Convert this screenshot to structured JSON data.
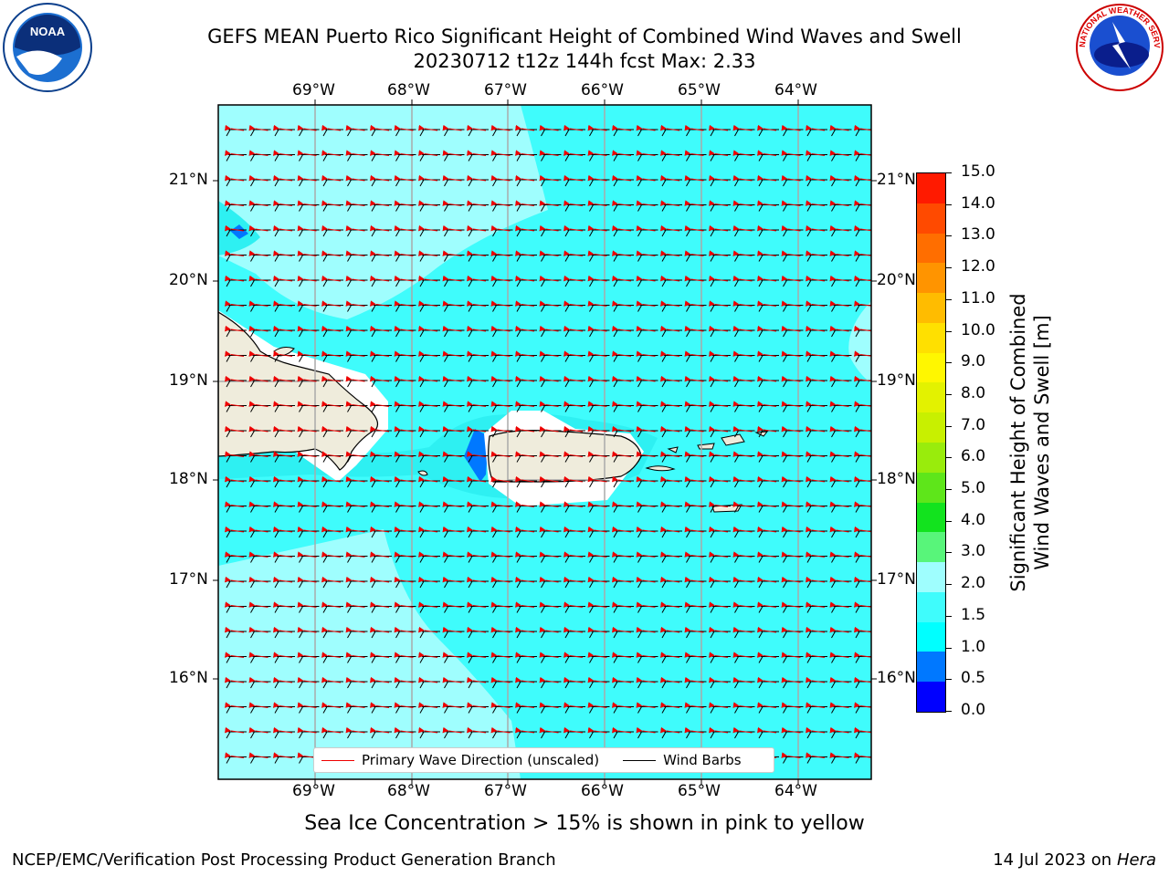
{
  "title": {
    "line1": "GEFS MEAN Puerto Rico Significant Height of Combined Wind Waves and Swell",
    "line2": "20230712 t12z 144h fcst   Max: 2.33"
  },
  "map": {
    "lon_ticks": [
      "69°W",
      "68°W",
      "67°W",
      "66°W",
      "65°W",
      "64°W"
    ],
    "lat_ticks": [
      "21°N",
      "20°N",
      "19°N",
      "18°N",
      "17°N",
      "16°N"
    ],
    "ocean_color": "#3ffcfc",
    "light_color": "#9ffefe",
    "land_color": "#efecdc"
  },
  "legend": {
    "wave_label": "Primary Wave Direction (unscaled)",
    "barb_label": "Wind Barbs"
  },
  "colorbar": {
    "label_line1": "Significant Height of Combined",
    "label_line2": "Wind Waves and Swell [m]",
    "ticks": [
      "15.0",
      "14.0",
      "13.0",
      "12.0",
      "11.0",
      "10.0",
      "9.0",
      "8.0",
      "7.0",
      "6.0",
      "5.0",
      "4.0",
      "3.0",
      "2.0",
      "1.5",
      "1.0",
      "0.5",
      "0.0"
    ],
    "colors": [
      "#0000ff",
      "#0078ff",
      "#00ffff",
      "#3ffcfc",
      "#9ffefe",
      "#58f57a",
      "#12e31e",
      "#5ee61a",
      "#99ec0c",
      "#c8f000",
      "#e3f200",
      "#fff700",
      "#ffe000",
      "#ffbc00",
      "#ff9400",
      "#ff6e00",
      "#ff4a00",
      "#ff1a00"
    ]
  },
  "note": "Sea Ice Concentration > 15% is shown in pink to yellow",
  "footer": {
    "left": "NCEP/EMC/Verification Post Processing Product Generation Branch",
    "right_date": "14 Jul 2023 on ",
    "right_host": "Hera"
  },
  "logos": {
    "noaa_text": "NOAA",
    "nws_text": "NATIONAL WEATHER SERVICE"
  }
}
